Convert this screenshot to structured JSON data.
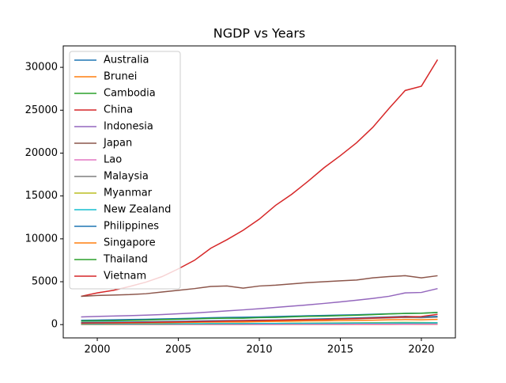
{
  "chart_data": {
    "type": "line",
    "title": "NGDP vs Years",
    "x": [
      1999,
      2000,
      2001,
      2002,
      2003,
      2004,
      2005,
      2006,
      2007,
      2008,
      2009,
      2010,
      2011,
      2012,
      2013,
      2014,
      2015,
      2016,
      2017,
      2018,
      2019,
      2020,
      2021
    ],
    "xlim": [
      1997.9,
      2022.1
    ],
    "xticks": [
      2000,
      2005,
      2010,
      2015,
      2020
    ],
    "ylim": [
      -1550,
      32500
    ],
    "yticks": [
      0,
      5000,
      10000,
      15000,
      20000,
      25000,
      30000
    ],
    "legend": "upper left",
    "series": [
      {
        "name": "Australia",
        "color": "#1f77b4",
        "values": [
          500,
          530,
          560,
          590,
          620,
          660,
          700,
          750,
          800,
          840,
          860,
          900,
          940,
          990,
          1030,
          1070,
          1110,
          1150,
          1210,
          1270,
          1310,
          1330,
          1420
        ]
      },
      {
        "name": "Brunei",
        "color": "#ff7f0e",
        "values": [
          14,
          15,
          15,
          16,
          16,
          17,
          18,
          19,
          19,
          20,
          20,
          20,
          21,
          22,
          22,
          22,
          22,
          22,
          23,
          24,
          26,
          27,
          28
        ]
      },
      {
        "name": "Cambodia",
        "color": "#2ca02c",
        "values": [
          13,
          15,
          16,
          18,
          20,
          22,
          25,
          28,
          31,
          33,
          34,
          37,
          40,
          43,
          46,
          50,
          54,
          59,
          64,
          70,
          76,
          73,
          78
        ]
      },
      {
        "name": "China",
        "color": "#d62728",
        "values": [
          3300,
          3700,
          4000,
          4450,
          4950,
          5600,
          6500,
          7500,
          8900,
          9900,
          11000,
          12300,
          13900,
          15200,
          16700,
          18300,
          19700,
          21200,
          23000,
          25200,
          27300,
          27800,
          30900
        ]
      },
      {
        "name": "Indonesia",
        "color": "#9467bd",
        "values": [
          900,
          950,
          1000,
          1050,
          1100,
          1170,
          1260,
          1360,
          1470,
          1600,
          1720,
          1850,
          2000,
          2150,
          2300,
          2470,
          2650,
          2850,
          3050,
          3300,
          3700,
          3750,
          4200
        ]
      },
      {
        "name": "Japan",
        "color": "#8c564b",
        "values": [
          3300,
          3400,
          3450,
          3500,
          3600,
          3800,
          4000,
          4200,
          4450,
          4500,
          4250,
          4500,
          4600,
          4750,
          4900,
          5000,
          5100,
          5200,
          5450,
          5600,
          5700,
          5450,
          5700
        ]
      },
      {
        "name": "Lao",
        "color": "#e377c2",
        "values": [
          9,
          10,
          11,
          11,
          12,
          13,
          14,
          16,
          17,
          19,
          20,
          22,
          24,
          27,
          29,
          32,
          35,
          38,
          41,
          44,
          47,
          48,
          50
        ]
      },
      {
        "name": "Malaysia",
        "color": "#7f7f7f",
        "values": [
          220,
          240,
          250,
          270,
          290,
          310,
          340,
          370,
          400,
          420,
          420,
          450,
          480,
          520,
          560,
          600,
          640,
          680,
          730,
          780,
          830,
          800,
          870
        ]
      },
      {
        "name": "Myanmar",
        "color": "#bcbd22",
        "values": [
          40,
          45,
          52,
          60,
          68,
          76,
          86,
          98,
          110,
          120,
          130,
          140,
          150,
          165,
          180,
          190,
          200,
          215,
          230,
          245,
          260,
          250,
          230
        ]
      },
      {
        "name": "New Zealand",
        "color": "#17becf",
        "values": [
          75,
          80,
          85,
          90,
          95,
          100,
          105,
          110,
          120,
          125,
          125,
          130,
          135,
          140,
          150,
          160,
          165,
          175,
          185,
          195,
          205,
          200,
          220
        ]
      },
      {
        "name": "Philippines",
        "color": "#1f77b4",
        "values": [
          250,
          270,
          280,
          300,
          320,
          350,
          380,
          410,
          440,
          470,
          480,
          510,
          540,
          580,
          630,
          680,
          720,
          780,
          840,
          900,
          960,
          890,
          960
        ]
      },
      {
        "name": "Singapore",
        "color": "#ff7f0e",
        "values": [
          150,
          170,
          170,
          180,
          200,
          220,
          240,
          270,
          300,
          310,
          310,
          350,
          380,
          400,
          430,
          450,
          470,
          490,
          520,
          560,
          580,
          560,
          610
        ]
      },
      {
        "name": "Thailand",
        "color": "#2ca02c",
        "values": [
          420,
          440,
          460,
          490,
          530,
          580,
          620,
          670,
          720,
          750,
          750,
          810,
          840,
          910,
          960,
          990,
          1040,
          1090,
          1160,
          1240,
          1300,
          1320,
          1420
        ]
      },
      {
        "name": "Vietnam",
        "color": "#d62728",
        "values": [
          180,
          200,
          220,
          240,
          260,
          290,
          320,
          350,
          380,
          410,
          440,
          470,
          500,
          540,
          570,
          610,
          660,
          710,
          770,
          840,
          910,
          940,
          1200
        ]
      }
    ]
  }
}
